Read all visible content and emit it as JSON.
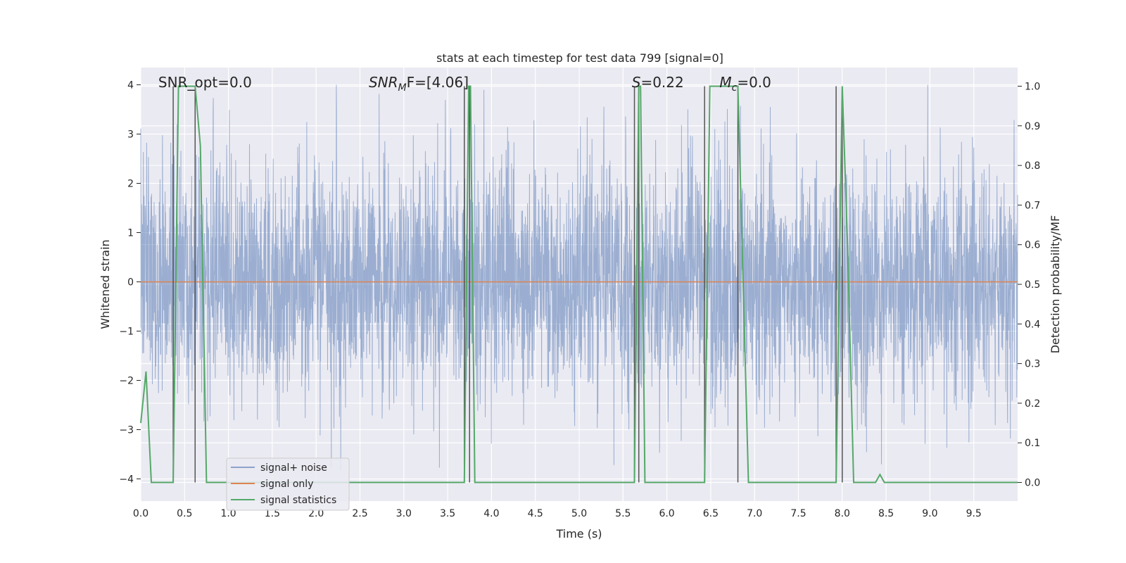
{
  "chart_data": {
    "type": "line",
    "title": "stats at each timestep for test data 799 [signal=0]",
    "xlabel": "Time (s)",
    "ylabel": "Whitened strain",
    "y2label": "Detection probability/MF",
    "xlim": [
      0.0,
      10.0
    ],
    "ylim": [
      -4.45,
      4.35
    ],
    "y2lim": [
      -0.047,
      1.047
    ],
    "xticks": [
      "0.0",
      "0.5",
      "1.0",
      "1.5",
      "2.0",
      "2.5",
      "3.0",
      "3.5",
      "4.0",
      "4.5",
      "5.0",
      "5.5",
      "6.0",
      "6.5",
      "7.0",
      "7.5",
      "8.0",
      "8.5",
      "9.0",
      "9.5"
    ],
    "yticks": [
      "4",
      "3",
      "2",
      "1",
      "0",
      "−1",
      "−2",
      "−3",
      "−4"
    ],
    "y2ticks": [
      "1.0",
      "0.9",
      "0.8",
      "0.7",
      "0.6",
      "0.5",
      "0.4",
      "0.3",
      "0.2",
      "0.1",
      "0.0"
    ],
    "grid": true,
    "legend_position": "lower-left",
    "colors": {
      "noise": "#4c72b0",
      "signal": "#dd8452",
      "stats": "#55a868",
      "vlines": "#555555",
      "plot_bg": "#eaeaf2",
      "grid": "#ffffff"
    },
    "series": [
      {
        "name": "signal+ noise",
        "envelope": {
          "typical_abs": 1.6,
          "max": 4.0,
          "min": -4.0
        }
      },
      {
        "name": "signal only",
        "x": [
          0.0,
          10.0
        ],
        "y": [
          0.0,
          0.0
        ]
      },
      {
        "name": "signal statistics",
        "x": [
          0.0,
          0.06,
          0.12,
          0.37,
          0.43,
          0.62,
          0.68,
          0.75,
          3.69,
          3.74,
          3.76,
          3.81,
          5.63,
          5.68,
          5.7,
          5.75,
          6.43,
          6.49,
          6.81,
          6.87,
          6.93,
          7.93,
          8.0,
          8.06,
          8.13,
          8.38,
          8.43,
          8.48,
          10.0
        ],
        "y": [
          0.15,
          0.28,
          0.0,
          0.0,
          1.0,
          1.0,
          0.85,
          0.0,
          0.0,
          1.0,
          1.0,
          0.0,
          0.0,
          1.0,
          1.0,
          0.0,
          0.0,
          1.0,
          1.0,
          0.5,
          0.0,
          0.0,
          1.0,
          0.6,
          0.0,
          0.0,
          0.02,
          0.0,
          0.0
        ]
      }
    ],
    "vlines_x": [
      0.37,
      0.62,
      3.69,
      3.75,
      5.63,
      5.68,
      6.43,
      6.81,
      7.93,
      8.0
    ],
    "annotations": [
      {
        "text": "SNR_opt=0.0",
        "x": 0.2
      },
      {
        "text": "SNR",
        "sub": "M",
        "tail": "F=[4.06]",
        "x": 2.6
      },
      {
        "text": "S",
        "tail": "=0.22",
        "x": 5.6
      },
      {
        "text": "M",
        "sub": "c",
        "tail": "=0.0",
        "x": 6.6
      }
    ]
  }
}
